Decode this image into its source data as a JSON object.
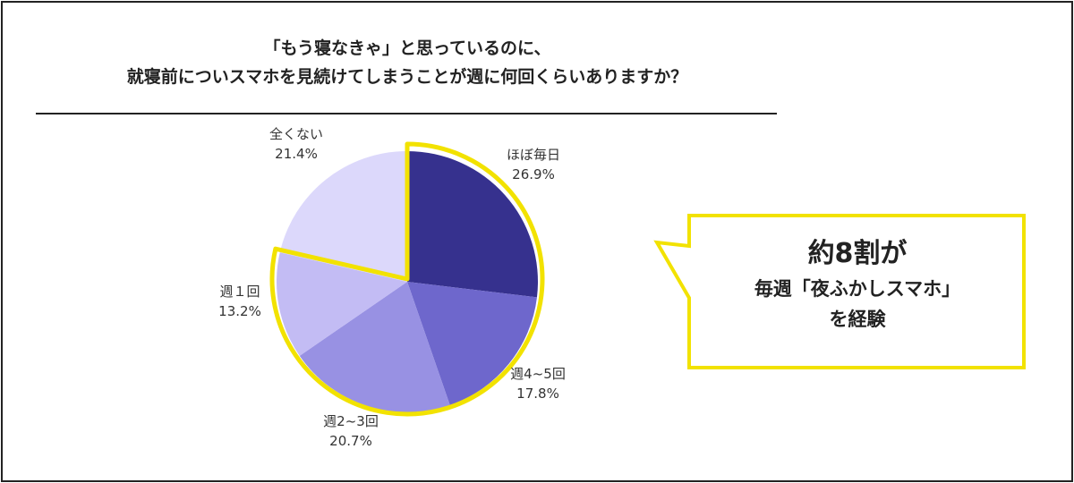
{
  "title": {
    "line1": "「もう寝なきゃ」と思っているのに、",
    "line2": "就寝前についスマホを見続けてしまうことが週に何回くらいありますか？"
  },
  "chart_data": {
    "type": "pie",
    "slices": [
      {
        "label": "ほぼ毎日",
        "value": 26.9,
        "value_text": "26.9%",
        "color": "#36318e",
        "highlighted": true
      },
      {
        "label": "週4~5回",
        "value": 17.8,
        "value_text": "17.8%",
        "color": "#6e67cc",
        "highlighted": true
      },
      {
        "label": "週2~3回",
        "value": 20.7,
        "value_text": "20.7%",
        "color": "#9891e3",
        "highlighted": true
      },
      {
        "label": "週１回",
        "value": 13.2,
        "value_text": "13.2%",
        "color": "#c3bcf4",
        "highlighted": true
      },
      {
        "label": "全くない",
        "value": 21.4,
        "value_text": "21.4%",
        "color": "#dcd8fb",
        "highlighted": false
      }
    ],
    "start": "12 o'clock",
    "direction": "clockwise",
    "highlight_color": "#f2e200"
  },
  "callout": {
    "main": "約8割が",
    "line2": "毎週「夜ふかしスマホ」",
    "line3": "を経験",
    "border_color": "#f2e200"
  }
}
